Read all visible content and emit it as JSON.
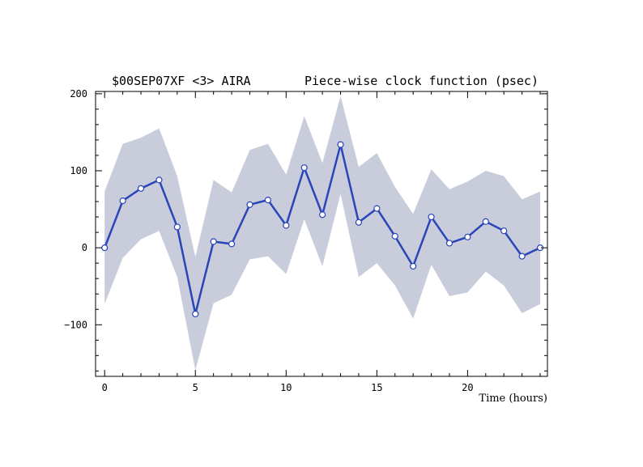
{
  "chart_data": {
    "type": "line",
    "title_left": "$00SEP07XF <3>  AIRA",
    "title_right": "Piece-wise clock function (psec)",
    "xlabel": "Time (hours)",
    "ylabel": "",
    "xlim": [
      -0.5,
      24.4
    ],
    "ylim": [
      -167,
      203
    ],
    "x_ticks": [
      0,
      5,
      10,
      15,
      20
    ],
    "y_ticks": [
      -100,
      0,
      100,
      200
    ],
    "grid": false,
    "colors": {
      "line": "#2a45b8",
      "band": "#c8ccdb",
      "marker_fill": "#ffffff"
    },
    "series": [
      {
        "x": [
          0,
          1,
          2,
          3,
          4,
          5,
          6,
          7,
          8,
          9,
          10,
          11,
          12,
          13,
          14,
          15,
          16,
          17,
          18,
          19,
          20,
          21,
          22,
          23,
          24
        ],
        "values": [
          0,
          61,
          77,
          88,
          27,
          -86,
          8,
          5,
          56,
          62,
          29,
          104,
          43,
          134,
          33,
          51,
          15,
          -24,
          40,
          6,
          14,
          34,
          22,
          -11,
          0
        ],
        "upper": [
          73,
          135,
          143,
          155,
          93,
          -12,
          88,
          72,
          127,
          135,
          95,
          171,
          110,
          197,
          105,
          123,
          79,
          44,
          102,
          76,
          86,
          100,
          93,
          63,
          73
        ],
        "lower": [
          -73,
          -13,
          11,
          22,
          -38,
          -159,
          -72,
          -61,
          -15,
          -11,
          -34,
          37,
          -24,
          70,
          -38,
          -20,
          -49,
          -92,
          -22,
          -63,
          -58,
          -31,
          -49,
          -85,
          -73
        ]
      }
    ]
  }
}
